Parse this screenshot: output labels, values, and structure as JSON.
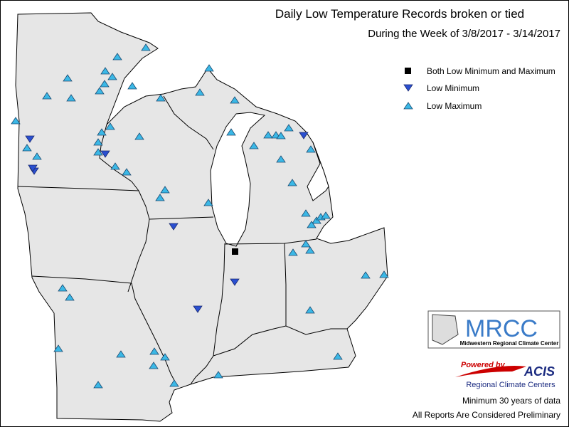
{
  "header": {
    "title": "Daily Low Temperature Records broken or tied",
    "subtitle": "During the Week of 3/8/2017 - 3/14/2017"
  },
  "legend": [
    {
      "label": "Both Low Minimum and Maximum"
    },
    {
      "label": "Low Minimum"
    },
    {
      "label": "Low Maximum"
    }
  ],
  "logos": {
    "mrcc": "MRCC",
    "mrcc_name": "Midwestern Regional Climate Center",
    "powered": "Powered by",
    "acis": "ACIS",
    "acis_name": "Regional Climate Centers"
  },
  "notes": [
    "Minimum 30 years of data",
    "All Reports Are Considered Preliminary"
  ]
}
